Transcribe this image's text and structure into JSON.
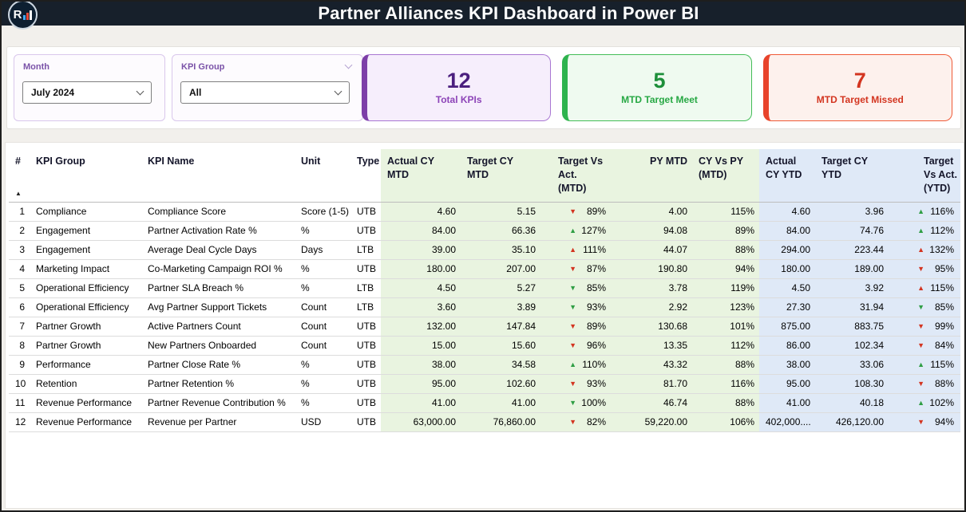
{
  "header": {
    "title": "Partner Alliances KPI Dashboard in Power BI",
    "logo_text": "R"
  },
  "filters": {
    "month": {
      "label": "Month",
      "value": "July 2024"
    },
    "kpi_group": {
      "label": "KPI Group",
      "value": "All"
    }
  },
  "cards": [
    {
      "name": "total-kpis-card",
      "value": "12",
      "label": "Total KPIs",
      "accent": "#7d3fa8",
      "bg": "#f6eefc",
      "border": "#a876d2",
      "value_color": "#4b1f7e",
      "label_color": "#8d44b8"
    },
    {
      "name": "mtd-target-meet-card",
      "value": "5",
      "label": "MTD Target Meet",
      "accent": "#2eb34e",
      "bg": "#effaf0",
      "border": "#43bd57",
      "value_color": "#1d8f3a",
      "label_color": "#27a844"
    },
    {
      "name": "mtd-target-missed-card",
      "value": "7",
      "label": "MTD Target Missed",
      "accent": "#e8432b",
      "bg": "#fdf1ed",
      "border": "#ef5a36",
      "value_color": "#d33520",
      "label_color": "#d33520"
    }
  ],
  "colors": {
    "bar_bg": "#17202b",
    "good": "#2f9e44",
    "bad": "#d33420",
    "mtd_bg": "#e9f4e0",
    "ytd_bg": "#dfe9f7",
    "slicer_label": "#7a52a8"
  },
  "table": {
    "sort_indicator": "▲",
    "icons": {
      "up": "▲",
      "down": "▼"
    },
    "columns": [
      {
        "label": "#",
        "key": "num"
      },
      {
        "label": "KPI Group",
        "key": "group"
      },
      {
        "label": "KPI Name",
        "key": "name"
      },
      {
        "label": "Unit",
        "key": "unit"
      },
      {
        "label": "Type",
        "key": "type"
      },
      {
        "label": "Actual CY MTD",
        "key": "actual_mtd"
      },
      {
        "label": "Target CY MTD",
        "key": "target_mtd"
      },
      {
        "label": "Target Vs Act. (MTD)",
        "key": "tva_mtd"
      },
      {
        "label": "PY MTD",
        "key": "py_mtd"
      },
      {
        "label": "CY Vs PY (MTD)",
        "key": "cy_vs_py"
      },
      {
        "label": "Actual CY YTD",
        "key": "actual_ytd"
      },
      {
        "label": "Target CY YTD",
        "key": "target_ytd"
      },
      {
        "label": "Target Vs Act. (YTD)",
        "key": "tva_ytd"
      }
    ],
    "rows": [
      {
        "num": "1",
        "group": "Compliance",
        "name": "Compliance Score",
        "unit": "Score (1-5)",
        "type": "UTB",
        "actual_mtd": "4.60",
        "target_mtd": "5.15",
        "tva_mtd": {
          "dir": "down",
          "status": "bad",
          "pct": "89%"
        },
        "py_mtd": "4.00",
        "cy_vs_py": "115%",
        "actual_ytd": "4.60",
        "target_ytd": "3.96",
        "tva_ytd": {
          "dir": "up",
          "status": "good",
          "pct": "116%"
        }
      },
      {
        "num": "2",
        "group": "Engagement",
        "name": "Partner Activation Rate %",
        "unit": "%",
        "type": "UTB",
        "actual_mtd": "84.00",
        "target_mtd": "66.36",
        "tva_mtd": {
          "dir": "up",
          "status": "good",
          "pct": "127%"
        },
        "py_mtd": "94.08",
        "cy_vs_py": "89%",
        "actual_ytd": "84.00",
        "target_ytd": "74.76",
        "tva_ytd": {
          "dir": "up",
          "status": "good",
          "pct": "112%"
        }
      },
      {
        "num": "3",
        "group": "Engagement",
        "name": "Average Deal Cycle Days",
        "unit": "Days",
        "type": "LTB",
        "actual_mtd": "39.00",
        "target_mtd": "35.10",
        "tva_mtd": {
          "dir": "up",
          "status": "bad",
          "pct": "111%"
        },
        "py_mtd": "44.07",
        "cy_vs_py": "88%",
        "actual_ytd": "294.00",
        "target_ytd": "223.44",
        "tva_ytd": {
          "dir": "up",
          "status": "bad",
          "pct": "132%"
        }
      },
      {
        "num": "4",
        "group": "Marketing Impact",
        "name": "Co-Marketing Campaign ROI %",
        "unit": "%",
        "type": "UTB",
        "actual_mtd": "180.00",
        "target_mtd": "207.00",
        "tva_mtd": {
          "dir": "down",
          "status": "bad",
          "pct": "87%"
        },
        "py_mtd": "190.80",
        "cy_vs_py": "94%",
        "actual_ytd": "180.00",
        "target_ytd": "189.00",
        "tva_ytd": {
          "dir": "down",
          "status": "bad",
          "pct": "95%"
        }
      },
      {
        "num": "5",
        "group": "Operational Efficiency",
        "name": "Partner SLA Breach %",
        "unit": "%",
        "type": "LTB",
        "actual_mtd": "4.50",
        "target_mtd": "5.27",
        "tva_mtd": {
          "dir": "down",
          "status": "good",
          "pct": "85%"
        },
        "py_mtd": "3.78",
        "cy_vs_py": "119%",
        "actual_ytd": "4.50",
        "target_ytd": "3.92",
        "tva_ytd": {
          "dir": "up",
          "status": "bad",
          "pct": "115%"
        }
      },
      {
        "num": "6",
        "group": "Operational Efficiency",
        "name": "Avg Partner Support Tickets",
        "unit": "Count",
        "type": "LTB",
        "actual_mtd": "3.60",
        "target_mtd": "3.89",
        "tva_mtd": {
          "dir": "down",
          "status": "good",
          "pct": "93%"
        },
        "py_mtd": "2.92",
        "cy_vs_py": "123%",
        "actual_ytd": "27.30",
        "target_ytd": "31.94",
        "tva_ytd": {
          "dir": "down",
          "status": "good",
          "pct": "85%"
        }
      },
      {
        "num": "7",
        "group": "Partner Growth",
        "name": "Active Partners Count",
        "unit": "Count",
        "type": "UTB",
        "actual_mtd": "132.00",
        "target_mtd": "147.84",
        "tva_mtd": {
          "dir": "down",
          "status": "bad",
          "pct": "89%"
        },
        "py_mtd": "130.68",
        "cy_vs_py": "101%",
        "actual_ytd": "875.00",
        "target_ytd": "883.75",
        "tva_ytd": {
          "dir": "down",
          "status": "bad",
          "pct": "99%"
        }
      },
      {
        "num": "8",
        "group": "Partner Growth",
        "name": "New Partners Onboarded",
        "unit": "Count",
        "type": "UTB",
        "actual_mtd": "15.00",
        "target_mtd": "15.60",
        "tva_mtd": {
          "dir": "down",
          "status": "bad",
          "pct": "96%"
        },
        "py_mtd": "13.35",
        "cy_vs_py": "112%",
        "actual_ytd": "86.00",
        "target_ytd": "102.34",
        "tva_ytd": {
          "dir": "down",
          "status": "bad",
          "pct": "84%"
        }
      },
      {
        "num": "9",
        "group": "Performance",
        "name": "Partner Close Rate %",
        "unit": "%",
        "type": "UTB",
        "actual_mtd": "38.00",
        "target_mtd": "34.58",
        "tva_mtd": {
          "dir": "up",
          "status": "good",
          "pct": "110%"
        },
        "py_mtd": "43.32",
        "cy_vs_py": "88%",
        "actual_ytd": "38.00",
        "target_ytd": "33.06",
        "tva_ytd": {
          "dir": "up",
          "status": "good",
          "pct": "115%"
        }
      },
      {
        "num": "10",
        "group": "Retention",
        "name": "Partner Retention %",
        "unit": "%",
        "type": "UTB",
        "actual_mtd": "95.00",
        "target_mtd": "102.60",
        "tva_mtd": {
          "dir": "down",
          "status": "bad",
          "pct": "93%"
        },
        "py_mtd": "81.70",
        "cy_vs_py": "116%",
        "actual_ytd": "95.00",
        "target_ytd": "108.30",
        "tva_ytd": {
          "dir": "down",
          "status": "bad",
          "pct": "88%"
        }
      },
      {
        "num": "11",
        "group": "Revenue Performance",
        "name": "Partner Revenue Contribution %",
        "unit": "%",
        "type": "UTB",
        "actual_mtd": "41.00",
        "target_mtd": "41.00",
        "tva_mtd": {
          "dir": "down",
          "status": "good",
          "pct": "100%"
        },
        "py_mtd": "46.74",
        "cy_vs_py": "88%",
        "actual_ytd": "41.00",
        "target_ytd": "40.18",
        "tva_ytd": {
          "dir": "up",
          "status": "good",
          "pct": "102%"
        }
      },
      {
        "num": "12",
        "group": "Revenue Performance",
        "name": "Revenue per Partner",
        "unit": "USD",
        "type": "UTB",
        "actual_mtd": "63,000.00",
        "target_mtd": "76,860.00",
        "tva_mtd": {
          "dir": "down",
          "status": "bad",
          "pct": "82%"
        },
        "py_mtd": "59,220.00",
        "cy_vs_py": "106%",
        "actual_ytd": "402,000....",
        "target_ytd": "426,120.00",
        "tva_ytd": {
          "dir": "down",
          "status": "bad",
          "pct": "94%"
        }
      }
    ]
  }
}
